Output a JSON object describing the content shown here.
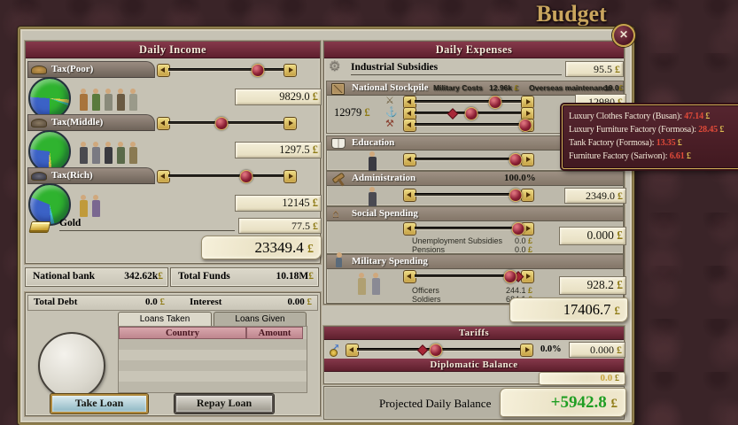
{
  "title": "Budget",
  "currency": "£",
  "close": "✕",
  "income": {
    "header": "Daily Income",
    "sections": [
      {
        "label": "Tax(Poor)",
        "value": "9829.0",
        "slider_pct": "72"
      },
      {
        "label": "Tax(Middle)",
        "value": "1297.5",
        "slider_pct": "46"
      },
      {
        "label": "Tax(Rich)",
        "value": "12145",
        "slider_pct": "64"
      }
    ],
    "gold_label": "Gold",
    "gold_value": "77.5",
    "total": "23349.4"
  },
  "bank": {
    "national_bank_label": "National bank",
    "national_bank_value": "342.62k",
    "total_funds_label": "Total Funds",
    "total_funds_value": "10.18M"
  },
  "loans": {
    "total_debt_label": "Total Debt",
    "total_debt_value": "0.0",
    "interest_label": "Interest",
    "interest_value": "0.00",
    "tab_taken": "Loans Taken",
    "tab_given": "Loans Given",
    "col_country": "Country",
    "col_amount": "Amount",
    "take_loan": "Take Loan",
    "repay_loan": "Repay Loan"
  },
  "expenses": {
    "header": "Daily Expenses",
    "industrial": {
      "label": "Industrial Subsidies",
      "value": "95.5"
    },
    "stockpile": {
      "label": "National Stockpile",
      "military_costs_label": "Military Costs",
      "military_costs_value": "12.96k",
      "overseas_label": "Overseas maintenance",
      "overseas_value": "19.0",
      "side_value": "12979",
      "value": "12980",
      "sliders": [
        {
          "pct": "70"
        },
        {
          "pct": "52",
          "marker": "38"
        },
        {
          "pct": "93"
        }
      ]
    },
    "education": {
      "label": "Education",
      "slider_pct": "86"
    },
    "administration": {
      "label": "Administration",
      "efficiency": "100.0%",
      "value": "2349.0",
      "slider_pct": "86"
    },
    "social": {
      "label": "Social Spending",
      "slider_pct": "88",
      "value": "0.000",
      "items": [
        {
          "label": "Unemployment Subsidies",
          "value": "0.0"
        },
        {
          "label": "Pensions",
          "value": "0.0"
        }
      ]
    },
    "military": {
      "label": "Military Spending",
      "slider_pct": "82",
      "marker": "88",
      "value": "928.2",
      "items": [
        {
          "label": "Officers",
          "value": "244.1"
        },
        {
          "label": "Soldiers",
          "value": "684.1"
        }
      ]
    },
    "total": "17406.7"
  },
  "tariffs": {
    "label": "Tariffs",
    "pct": "0.0%",
    "value": "0.000",
    "slider_pct": "48",
    "marker": "41"
  },
  "diplomatic": {
    "label": "Diplomatic Balance",
    "value": "0.0"
  },
  "balance": {
    "label": "Projected Daily Balance",
    "value": "+5942.8"
  },
  "tooltip": {
    "items": [
      {
        "label": "Luxury Clothes Factory (Busan):",
        "value": "47.14"
      },
      {
        "label": "Luxury Furniture Factory (Formosa):",
        "value": "28.45"
      },
      {
        "label": "Tank Factory (Formosa):",
        "value": "13.35"
      },
      {
        "label": "Furniture Factory (Sariwon):",
        "value": "6.61"
      }
    ]
  }
}
